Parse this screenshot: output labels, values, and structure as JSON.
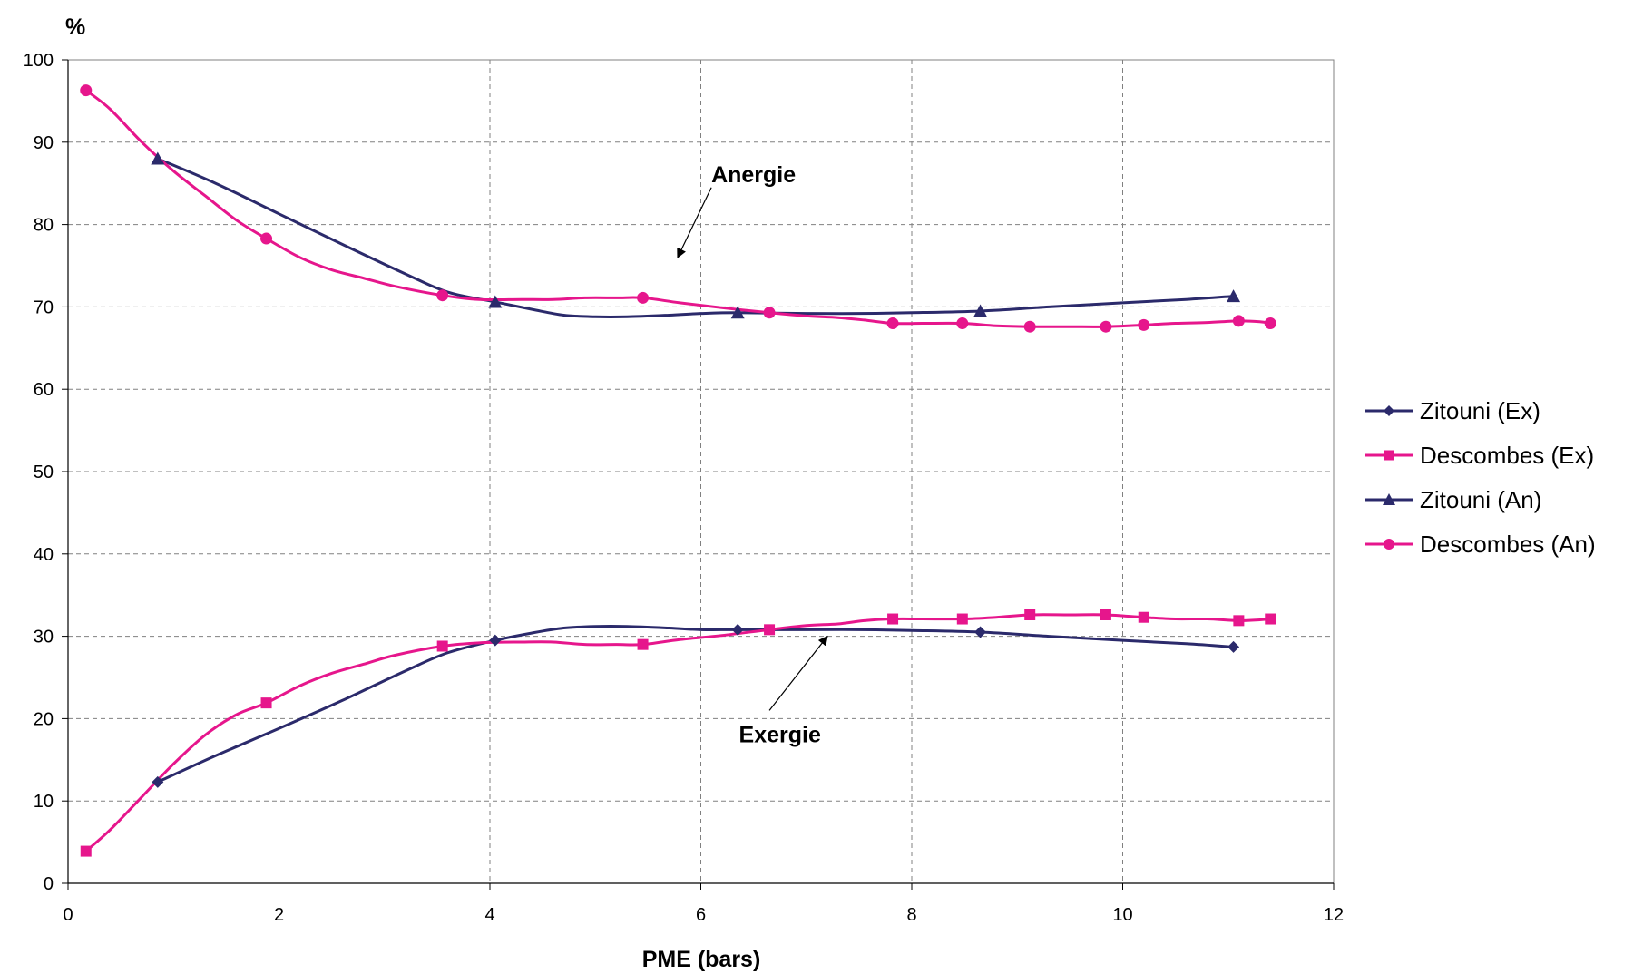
{
  "chart_data": {
    "type": "line",
    "title": "",
    "ylabel": "%",
    "xlabel": "PME (bars)",
    "xlim": [
      0,
      12
    ],
    "ylim": [
      0,
      100
    ],
    "x_ticks": [
      0,
      2,
      4,
      6,
      8,
      10,
      12
    ],
    "y_ticks": [
      0,
      10,
      20,
      30,
      40,
      50,
      60,
      70,
      80,
      90,
      100
    ],
    "grid": true,
    "legend_position": "right",
    "series": [
      {
        "name": "Zitouni (Ex)",
        "color": "#2B2A6B",
        "marker": "diamond",
        "x": [
          0.85,
          4.05,
          6.35,
          8.65,
          11.05
        ],
        "y": [
          12.3,
          29.5,
          30.8,
          30.5,
          28.7
        ],
        "curve_x": [
          0.85,
          1.4,
          2.0,
          2.6,
          3.2,
          3.6,
          4.05,
          4.4,
          4.7,
          5.0,
          5.3,
          5.7,
          6.0,
          6.35,
          7.0,
          7.5,
          8.0,
          8.65,
          9.3,
          10.0,
          10.6,
          11.05
        ],
        "curve_y": [
          12.3,
          15.5,
          18.8,
          22.2,
          25.8,
          28.0,
          29.5,
          30.4,
          31.0,
          31.2,
          31.2,
          31.0,
          30.8,
          30.8,
          30.8,
          30.8,
          30.7,
          30.5,
          30.0,
          29.5,
          29.1,
          28.7
        ]
      },
      {
        "name": "Descombes (Ex)",
        "color": "#E6168C",
        "marker": "square",
        "x": [
          0.17,
          1.88,
          3.55,
          5.45,
          6.65,
          7.82,
          8.48,
          9.12,
          9.84,
          10.2,
          11.1,
          11.4
        ],
        "y": [
          3.9,
          21.9,
          28.8,
          29.0,
          30.8,
          32.1,
          32.1,
          32.6,
          32.6,
          32.3,
          31.9,
          32.1
        ],
        "curve_x": [
          0.17,
          0.4,
          0.7,
          1.0,
          1.3,
          1.6,
          1.88,
          2.2,
          2.5,
          2.8,
          3.1,
          3.55,
          3.9,
          4.3,
          4.6,
          4.9,
          5.2,
          5.45,
          5.8,
          6.2,
          6.65,
          7.0,
          7.3,
          7.55,
          7.82,
          8.1,
          8.48,
          8.8,
          9.12,
          9.5,
          9.84,
          10.2,
          10.5,
          10.8,
          11.1,
          11.3,
          11.4
        ],
        "curve_y": [
          3.9,
          6.5,
          10.5,
          14.5,
          18.0,
          20.5,
          21.9,
          24.0,
          25.5,
          26.6,
          27.7,
          28.8,
          29.2,
          29.3,
          29.3,
          29.0,
          29.0,
          29.0,
          29.6,
          30.1,
          30.8,
          31.3,
          31.5,
          31.9,
          32.1,
          32.1,
          32.1,
          32.3,
          32.6,
          32.6,
          32.6,
          32.3,
          32.1,
          32.1,
          31.9,
          32.0,
          32.1
        ]
      },
      {
        "name": "Zitouni (An)",
        "color": "#2B2A6B",
        "marker": "triangle",
        "x": [
          0.85,
          4.05,
          6.35,
          8.65,
          11.05
        ],
        "y": [
          88.0,
          70.6,
          69.3,
          69.5,
          71.3
        ],
        "curve_x": [
          0.85,
          1.4,
          2.0,
          2.6,
          3.2,
          3.6,
          4.05,
          4.4,
          4.7,
          5.0,
          5.3,
          5.7,
          6.0,
          6.35,
          7.0,
          7.5,
          8.0,
          8.65,
          9.3,
          10.0,
          10.6,
          11.05
        ],
        "curve_y": [
          88.0,
          85.0,
          81.3,
          77.6,
          74.0,
          71.8,
          70.6,
          69.7,
          69.0,
          68.8,
          68.8,
          69.0,
          69.2,
          69.3,
          69.2,
          69.2,
          69.3,
          69.5,
          70.0,
          70.5,
          70.9,
          71.3
        ]
      },
      {
        "name": "Descombes (An)",
        "color": "#E6168C",
        "marker": "circle",
        "x": [
          0.17,
          1.88,
          3.55,
          5.45,
          6.65,
          7.82,
          8.48,
          9.12,
          9.84,
          10.2,
          11.1,
          11.4
        ],
        "y": [
          96.3,
          78.3,
          71.4,
          71.1,
          69.3,
          68.0,
          68.0,
          67.6,
          67.6,
          67.8,
          68.3,
          68.0
        ],
        "curve_x": [
          0.17,
          0.4,
          0.7,
          1.0,
          1.3,
          1.6,
          1.88,
          2.2,
          2.5,
          2.8,
          3.1,
          3.55,
          3.9,
          4.3,
          4.6,
          4.9,
          5.2,
          5.45,
          5.8,
          6.2,
          6.65,
          7.0,
          7.3,
          7.55,
          7.82,
          8.1,
          8.48,
          8.8,
          9.12,
          9.5,
          9.84,
          10.2,
          10.5,
          10.8,
          11.1,
          11.3,
          11.4
        ],
        "curve_y": [
          96.3,
          94.0,
          90.0,
          86.5,
          83.5,
          80.5,
          78.3,
          76.0,
          74.5,
          73.5,
          72.5,
          71.4,
          70.9,
          70.9,
          70.9,
          71.1,
          71.1,
          71.1,
          70.5,
          69.9,
          69.3,
          68.9,
          68.7,
          68.4,
          68.0,
          68.0,
          68.0,
          67.7,
          67.6,
          67.6,
          67.6,
          67.8,
          68.0,
          68.1,
          68.3,
          68.2,
          68.0
        ]
      }
    ],
    "annotations": [
      {
        "text": "Anergie",
        "at": [
          6.5,
          86.0
        ],
        "arrow_from": [
          6.1,
          84.5
        ],
        "arrow_to": [
          5.78,
          76.0
        ]
      },
      {
        "text": "Exergie",
        "at": [
          6.75,
          18.0
        ],
        "arrow_from": [
          6.65,
          21.0
        ],
        "arrow_to": [
          7.2,
          30.0
        ]
      }
    ]
  }
}
